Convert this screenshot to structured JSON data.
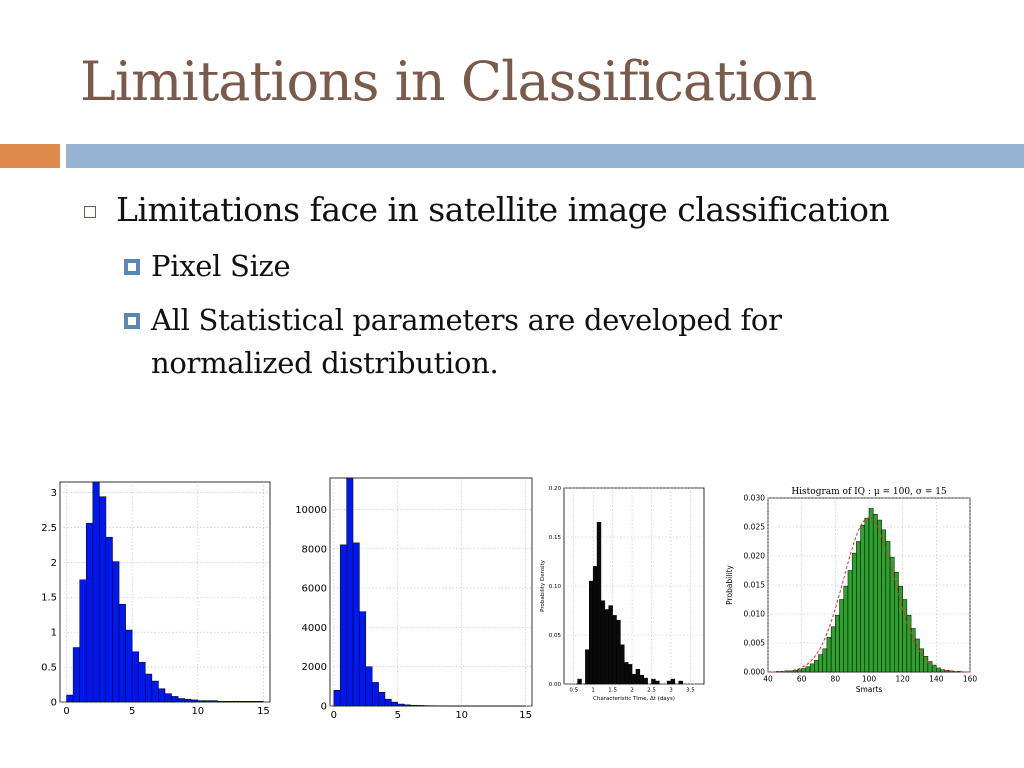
{
  "slide": {
    "title": "Limitations in Classification",
    "bullet_main": "Limitations face in satellite image classification",
    "sub_bullets": [
      "Pixel Size",
      "All Statistical parameters are developed for",
      "normalized distribution."
    ]
  },
  "colors": {
    "title": "#7a5b4b",
    "orange_bar": "#dd8a4c",
    "blue_bar": "#95b3d1"
  },
  "chart_data": [
    {
      "type": "bar",
      "x_ticks": [
        "0",
        "5",
        "10",
        "15"
      ],
      "y_ticks": [
        "0",
        "0.5",
        "1",
        "1.5",
        "2",
        "2.5",
        "3"
      ],
      "xlim": [
        -0.5,
        15.5
      ],
      "ylim": [
        0,
        3.15
      ],
      "bin_width": 0.5,
      "x": [
        0,
        0.5,
        1,
        1.5,
        2,
        2.5,
        3,
        3.5,
        4,
        4.5,
        5,
        5.5,
        6,
        6.5,
        7,
        7.5,
        8,
        8.5,
        9,
        9.5,
        10,
        10.5,
        11,
        11.5,
        12,
        12.5,
        13,
        13.5,
        14,
        14.5
      ],
      "values": [
        0.1,
        0.78,
        1.75,
        2.56,
        3.15,
        2.94,
        2.36,
        2.01,
        1.4,
        1.03,
        0.72,
        0.57,
        0.4,
        0.3,
        0.19,
        0.12,
        0.08,
        0.05,
        0.04,
        0.03,
        0.02,
        0.02,
        0.02,
        0.01,
        0.01,
        0.01,
        0.01,
        0.01,
        0.01,
        0.01
      ],
      "bar_color": "#0018f0",
      "grid": true
    },
    {
      "type": "bar",
      "x_ticks": [
        "0",
        "5",
        "10",
        "15"
      ],
      "y_ticks": [
        "0",
        "2000",
        "4000",
        "6000",
        "8000",
        "10000"
      ],
      "xlim": [
        -0.3,
        15.5
      ],
      "ylim": [
        0,
        11600
      ],
      "bin_width": 0.5,
      "x": [
        0,
        0.5,
        1,
        1.5,
        2,
        2.5,
        3,
        3.5,
        4,
        4.5,
        5,
        5.5,
        6,
        6.5,
        7,
        7.5,
        8,
        8.5,
        9,
        9.5,
        10,
        10.5,
        11,
        11.5,
        12,
        12.5,
        13,
        13.5,
        14,
        14.5
      ],
      "values": [
        800,
        8200,
        11600,
        8300,
        4800,
        2000,
        1200,
        700,
        350,
        200,
        100,
        60,
        40,
        30,
        20,
        15,
        10,
        10,
        5,
        5,
        5,
        5,
        5,
        5,
        5,
        5,
        5,
        5,
        5,
        5
      ],
      "bar_color": "#0018f0",
      "grid": true
    },
    {
      "type": "bar",
      "ylabel": "Probability Density",
      "xlabel": "Characteristic Time, Δt (days)",
      "x_ticks": [
        "0.5",
        "1",
        "1.5",
        "2",
        "2.5",
        "3",
        "3.5"
      ],
      "y_ticks": [
        "0.00",
        "0.05",
        "0.10",
        "0.15",
        "0.20"
      ],
      "xlim": [
        0.25,
        3.85
      ],
      "ylim": [
        0,
        0.2
      ],
      "bin_width": 0.1,
      "x": [
        0.6,
        0.8,
        0.9,
        1.0,
        1.1,
        1.2,
        1.3,
        1.4,
        1.5,
        1.6,
        1.7,
        1.8,
        1.9,
        2.0,
        2.1,
        2.2,
        2.3,
        2.5,
        2.6,
        2.9,
        3.0,
        3.2
      ],
      "values": [
        0.005,
        0.035,
        0.105,
        0.12,
        0.165,
        0.085,
        0.076,
        0.08,
        0.07,
        0.065,
        0.04,
        0.022,
        0.02,
        0.01,
        0.015,
        0.009,
        0.006,
        0.005,
        0.003,
        0.003,
        0.005,
        0.003
      ],
      "bar_color": "#0a0a0a",
      "grid": true
    },
    {
      "type": "bar",
      "title": "Histogram of IQ : μ = 100, σ = 15",
      "xlabel": "Smarts",
      "ylabel": "Probability",
      "x_ticks": [
        "40",
        "60",
        "80",
        "100",
        "120",
        "140",
        "160"
      ],
      "y_ticks": [
        "0.000",
        "0.005",
        "0.010",
        "0.015",
        "0.020",
        "0.025",
        "0.030"
      ],
      "xlim": [
        40,
        160
      ],
      "ylim": [
        0,
        0.03
      ],
      "bin_width": 2.5,
      "x": [
        45,
        47.5,
        50,
        52.5,
        55,
        57.5,
        60,
        62.5,
        65,
        67.5,
        70,
        72.5,
        75,
        77.5,
        80,
        82.5,
        85,
        87.5,
        90,
        92.5,
        95,
        97.5,
        100,
        102.5,
        105,
        107.5,
        110,
        112.5,
        115,
        117.5,
        120,
        122.5,
        125,
        127.5,
        130,
        132.5,
        135,
        137.5,
        140,
        142.5,
        145,
        147.5,
        150,
        152.5
      ],
      "values": [
        0.0001,
        0.0001,
        0.0002,
        0.0002,
        0.0003,
        0.0004,
        0.0006,
        0.0009,
        0.0014,
        0.002,
        0.003,
        0.004,
        0.006,
        0.0078,
        0.0098,
        0.0125,
        0.0148,
        0.0175,
        0.0205,
        0.0225,
        0.0253,
        0.0265,
        0.0282,
        0.0272,
        0.0262,
        0.0245,
        0.0225,
        0.0198,
        0.0172,
        0.0148,
        0.0125,
        0.0098,
        0.0075,
        0.0057,
        0.004,
        0.0027,
        0.0018,
        0.0012,
        0.0007,
        0.0004,
        0.0003,
        0.0002,
        0.0001,
        0.0001
      ],
      "bar_color": "#2ea02e",
      "curve_color": "#e03030",
      "grid": true
    }
  ]
}
